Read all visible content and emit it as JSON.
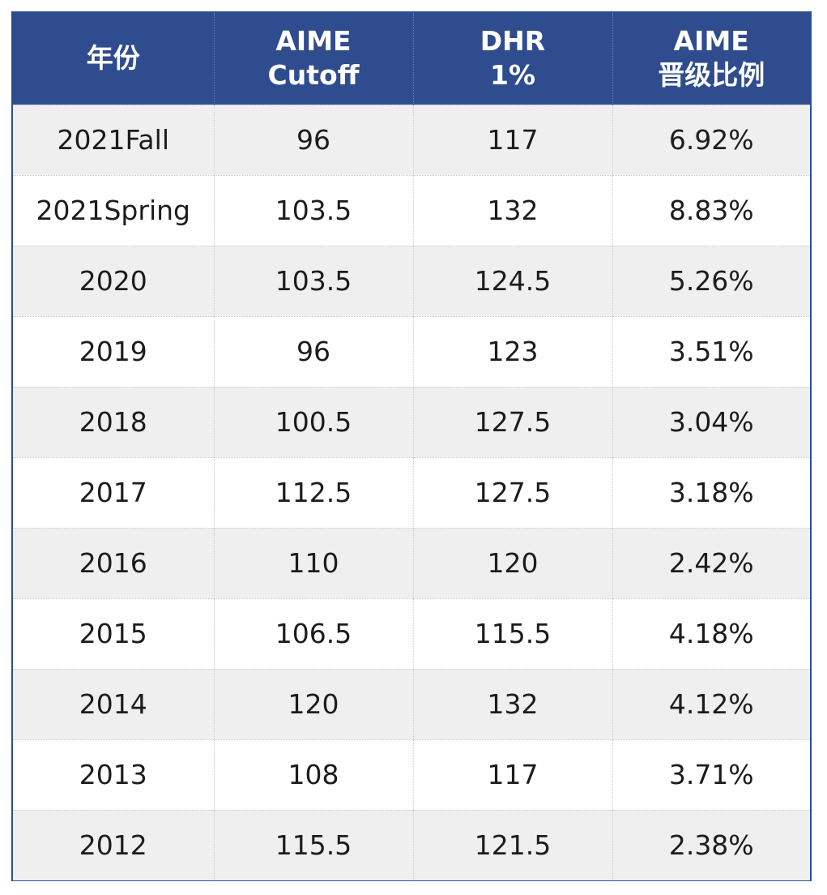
{
  "table": {
    "headers": [
      {
        "lines": [
          "年份"
        ]
      },
      {
        "lines": [
          "AIME",
          "Cutoff"
        ]
      },
      {
        "lines": [
          "DHR",
          "1%"
        ]
      },
      {
        "lines": [
          "AIME",
          "晋级比例"
        ]
      }
    ],
    "rows": [
      [
        "2021Fall",
        "96",
        "117",
        "6.92%"
      ],
      [
        "2021Spring",
        "103.5",
        "132",
        "8.83%"
      ],
      [
        "2020",
        "103.5",
        "124.5",
        "5.26%"
      ],
      [
        "2019",
        "96",
        "123",
        "3.51%"
      ],
      [
        "2018",
        "100.5",
        "127.5",
        "3.04%"
      ],
      [
        "2017",
        "112.5",
        "127.5",
        "3.18%"
      ],
      [
        "2016",
        "110",
        "120",
        "2.42%"
      ],
      [
        "2015",
        "106.5",
        "115.5",
        "4.18%"
      ],
      [
        "2014",
        "120",
        "132",
        "4.12%"
      ],
      [
        "2013",
        "108",
        "117",
        "3.71%"
      ],
      [
        "2012",
        "115.5",
        "121.5",
        "2.38%"
      ]
    ]
  },
  "colors": {
    "header_bg": "#2f4c8e",
    "border": "#2c4d93",
    "row_alt_bg": "#efefef",
    "row_bg": "#ffffff"
  }
}
